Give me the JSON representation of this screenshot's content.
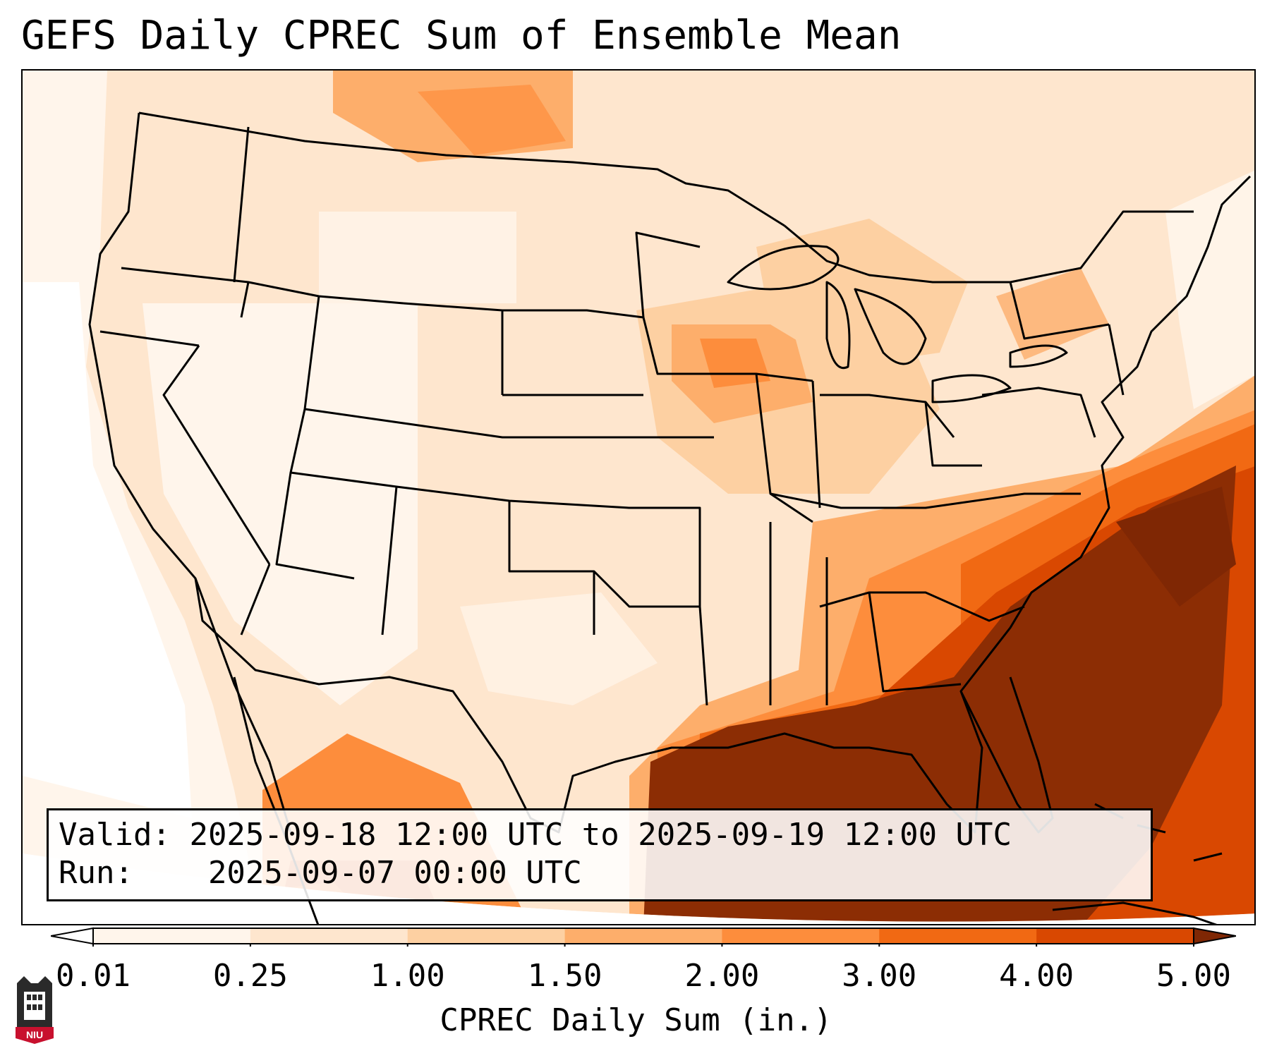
{
  "title": "GEFS Daily CPREC Sum of Ensemble Mean",
  "info": {
    "valid_label": "Valid:",
    "valid_value": "2025-09-18 12:00 UTC to 2025-09-19 12:00 UTC",
    "run_label": "Run:",
    "run_value": "2025-09-07 00:00 UTC"
  },
  "colorbar": {
    "label": "CPREC Daily Sum (in.)",
    "ticks": [
      "0.01",
      "0.25",
      "1.00",
      "1.50",
      "2.00",
      "3.00",
      "4.00",
      "5.00"
    ],
    "colors": [
      "#fff5eb",
      "#fee6ce",
      "#fdd0a2",
      "#fdae6b",
      "#fd8d3c",
      "#f16913",
      "#d94801",
      "#8c2d04"
    ],
    "under_color": "#ffffff",
    "over_color": "#7f2704"
  },
  "legend_data": {
    "type": "colorbar",
    "units": "in.",
    "levels": [
      0.01,
      0.25,
      1.0,
      1.5,
      2.0,
      3.0,
      4.0,
      5.0
    ],
    "extend": "both"
  },
  "logo": {
    "text": "NIU",
    "color": "#c8102e"
  }
}
